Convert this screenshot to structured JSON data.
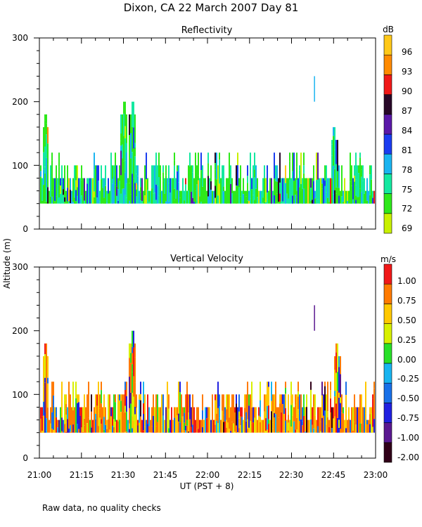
{
  "header": {
    "title": "Dixon, CA 22 March 2007  Day  81"
  },
  "footer": {
    "note": "Raw data, no quality checks"
  },
  "shared": {
    "ylabel": "Altitude (m)",
    "xlabel": "UT  (PST + 8)",
    "x_ticks": [
      "21:00",
      "21:15",
      "21:30",
      "21:45",
      "22:00",
      "22:15",
      "22:30",
      "22:45",
      "23:00"
    ],
    "y_ticks": [
      "0",
      "100",
      "200",
      "300"
    ]
  },
  "chart_data": [
    {
      "type": "heatmap",
      "title": "Reflectivity",
      "xlabel": "UT  (PST + 8)",
      "ylabel": "Altitude (m)",
      "xlim": [
        "21:00",
        "23:00"
      ],
      "ylim": [
        0,
        300
      ],
      "colorbar": {
        "unit": "dB",
        "labels": [
          "69",
          "72",
          "75",
          "78",
          "81",
          "84",
          "87",
          "90",
          "93",
          "96"
        ],
        "colors": [
          "#c8f000",
          "#2ee81a",
          "#14e8a0",
          "#1ab4f0",
          "#1a3cf0",
          "#5a18a8",
          "#280828",
          "#f01818",
          "#ff8a00",
          "#ffc818"
        ]
      },
      "echo_base_m": 40,
      "typical_top_m": [
        60,
        120
      ],
      "peaks": [
        {
          "time": "21:02",
          "top_m": 180
        },
        {
          "time": "21:30",
          "top_m": 200
        },
        {
          "time": "21:33",
          "top_m": 200
        },
        {
          "time": "22:38",
          "top_m": 240
        },
        {
          "time": "22:45",
          "top_m": 160
        }
      ]
    },
    {
      "type": "heatmap",
      "title": "Vertical Velocity",
      "xlabel": "UT  (PST + 8)",
      "ylabel": "Altitude (m)",
      "xlim": [
        "21:00",
        "23:00"
      ],
      "ylim": [
        0,
        300
      ],
      "colorbar": {
        "unit": "m/s",
        "labels": [
          "-2.00",
          "-1.00",
          "-0.75",
          "-0.50",
          "-0.25",
          "0.00",
          "0.25",
          "0.50",
          "0.75",
          "1.00"
        ],
        "colors": [
          "#300018",
          "#5a1890",
          "#2020e0",
          "#1870e8",
          "#18b4f0",
          "#28e028",
          "#d8f000",
          "#ffc800",
          "#ff7a00",
          "#f01818"
        ]
      },
      "echo_base_m": 40,
      "typical_top_m": [
        60,
        120
      ],
      "peaks": [
        {
          "time": "21:02",
          "top_m": 180
        },
        {
          "time": "21:33",
          "top_m": 200
        },
        {
          "time": "22:38",
          "top_m": 240
        },
        {
          "time": "22:46",
          "top_m": 180
        }
      ]
    }
  ]
}
